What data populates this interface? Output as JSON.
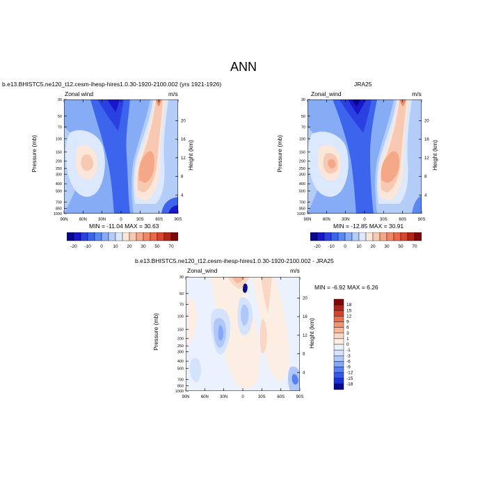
{
  "main_title": "ANN",
  "colors": {
    "full_palette": [
      "#08088c",
      "#1818c8",
      "#2a40e0",
      "#3c64ec",
      "#5a88f2",
      "#86acf6",
      "#b4cdf8",
      "#dce8fb",
      "#fbe6da",
      "#f8c9b2",
      "#f4a888",
      "#ef8665",
      "#e96848",
      "#d6472f",
      "#b32616",
      "#7e0a0a"
    ],
    "diff_palette": [
      "#0a0a8e",
      "#1e30d2",
      "#3658e2",
      "#5a82ef",
      "#86a8f4",
      "#b0c8f8",
      "#d4e2fb",
      "#ebf2fd",
      "#fdeee4",
      "#fad7c4",
      "#f6b898",
      "#f09474",
      "#e97050",
      "#d4442c",
      "#b0201a",
      "#7e0808"
    ]
  },
  "chart_data": [
    {
      "type": "heatmap",
      "title": "b.e13.BHISTC5.ne120_t12.cesm-ihesp-hires1.0.30-1920-2100.002 (yrs 1921-1926)",
      "left_label": "Zonal wind",
      "units": "m/s",
      "ylabel": "Pressure (mb)",
      "ylabel_right": "Height (km)",
      "x_ticks": [
        "90N",
        "60N",
        "30N",
        "0",
        "30S",
        "60S",
        "90S"
      ],
      "y_ticks": [
        "30",
        "50",
        "70",
        "100",
        "150",
        "200",
        "250",
        "300",
        "400",
        "500",
        "700",
        "850",
        "1000"
      ],
      "y_right_ticks": [
        "20",
        "16",
        "12",
        "8",
        "4"
      ],
      "min_max": "MIN = -11.04   MAX =  30.63",
      "colorbar_labels": [
        "-20",
        "-10",
        "0",
        "10",
        "20",
        "30",
        "50",
        "70"
      ]
    },
    {
      "type": "heatmap",
      "title": "JRA25",
      "left_label": "Zonal_wind",
      "units": "m/s",
      "ylabel": "Pressure (mb)",
      "ylabel_right": "Height (km)",
      "x_ticks": [
        "90N",
        "60N",
        "30N",
        "0",
        "30S",
        "60S",
        "90S"
      ],
      "y_ticks": [
        "30",
        "50",
        "70",
        "100",
        "150",
        "200",
        "250",
        "300",
        "400",
        "500",
        "700",
        "850",
        "1000"
      ],
      "y_right_ticks": [
        "20",
        "16",
        "12",
        "8",
        "4"
      ],
      "min_max": "MIN = -12.85   MAX =  30.91",
      "colorbar_labels": [
        "-20",
        "-10",
        "0",
        "10",
        "20",
        "30",
        "50",
        "70"
      ]
    },
    {
      "type": "heatmap",
      "title": "b.e13.BHISTC5.ne120_t12.cesm-ihesp-hires1.0.30-1920-2100.002 - JRA25",
      "left_label": "Zonal_wind",
      "units": "m/s",
      "ylabel": "Pressure (mb)",
      "ylabel_right": "Height (km)",
      "x_ticks": [
        "90N",
        "60N",
        "30N",
        "0",
        "30S",
        "60S",
        "90S"
      ],
      "y_ticks": [
        "30",
        "50",
        "70",
        "100",
        "150",
        "200",
        "250",
        "300",
        "400",
        "500",
        "700",
        "850",
        "1000"
      ],
      "y_right_ticks": [
        "20",
        "16",
        "12",
        "8",
        "4"
      ],
      "min_max": "MIN =  -6.92   MAX =   6.26",
      "colorbar_labels": [
        "18",
        "15",
        "12",
        "9",
        "6",
        "3",
        "1",
        "0",
        "-1",
        "-3",
        "-6",
        "-9",
        "-12",
        "-15",
        "-18"
      ]
    }
  ]
}
